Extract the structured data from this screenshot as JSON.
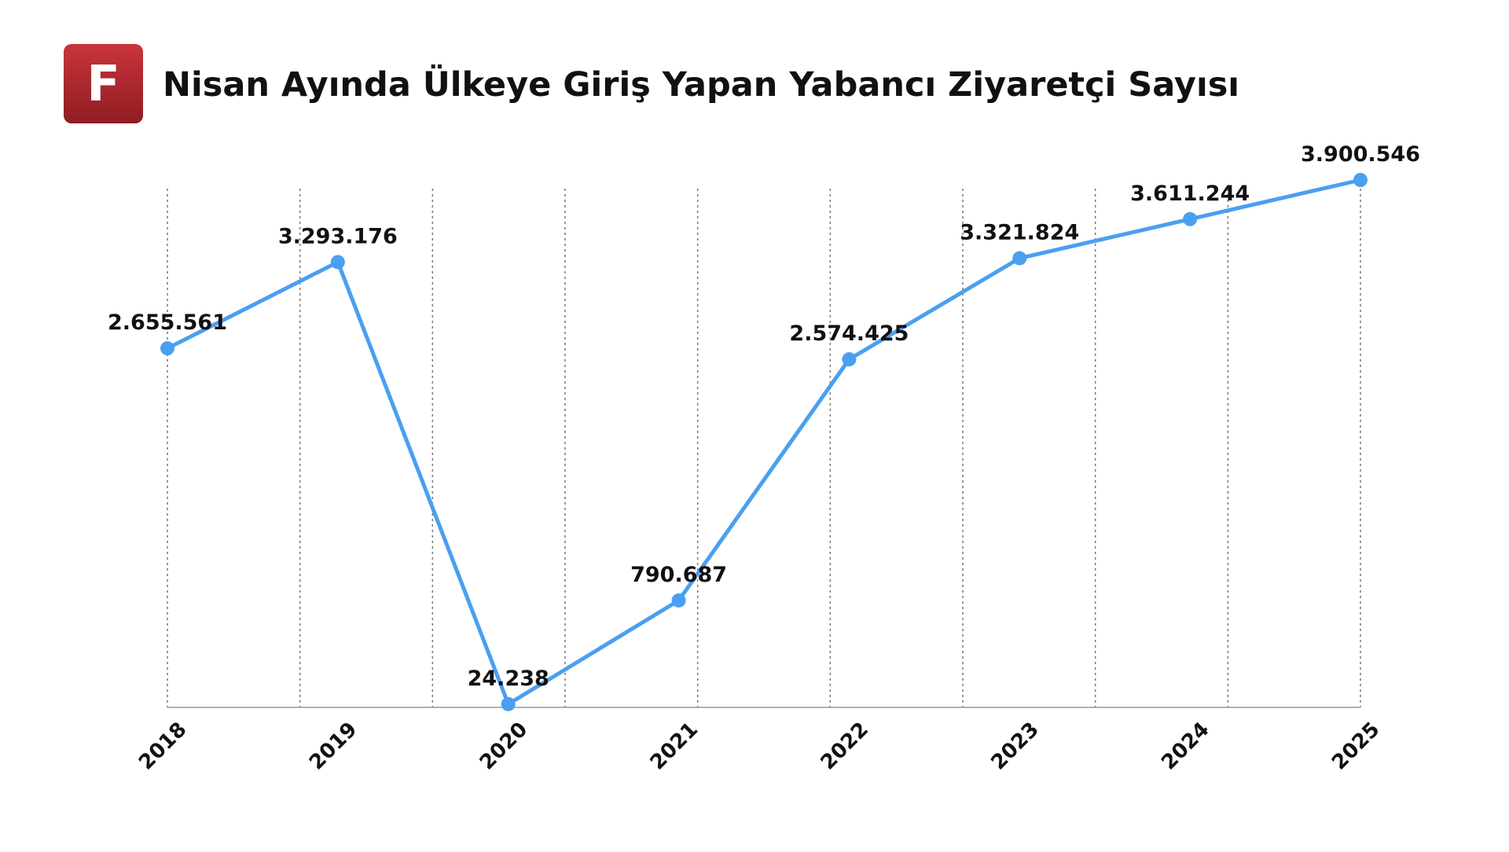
{
  "logo": "F",
  "chart_data": {
    "type": "line",
    "title": "Nisan Ayında Ülkeye Giriş Yapan Yabancı Ziyaretçi Sayısı",
    "categories": [
      "2018",
      "2019",
      "2020",
      "2021",
      "2022",
      "2023",
      "2024",
      "2025"
    ],
    "series": [
      {
        "color": "#4a9ff0",
        "values": [
          2655561,
          3293176,
          24238,
          790687,
          2574425,
          3321824,
          3611244,
          3900546
        ],
        "value_labels": [
          "2.655.561",
          "3.293.176",
          "24.238",
          "790.687",
          "2.574.425",
          "3.321.824",
          "3.611.244",
          "3.900.546"
        ]
      }
    ]
  }
}
